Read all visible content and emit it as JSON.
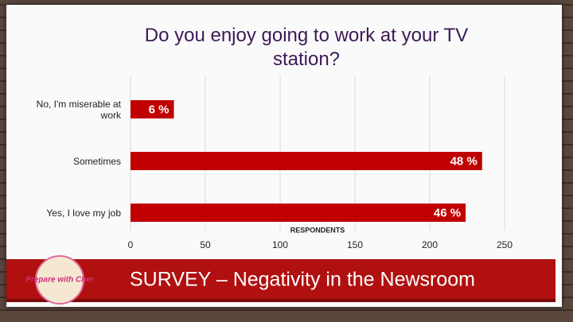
{
  "chart_data": {
    "type": "bar",
    "orientation": "horizontal",
    "title": "Do you enjoy going to work at your TV station?",
    "categories": [
      "No, I'm miserable at work",
      "Sometimes",
      "Yes, I love my job"
    ],
    "values": [
      29,
      235,
      224
    ],
    "percent_labels": [
      "6 %",
      "48 %",
      "46 %"
    ],
    "color": "#c00000",
    "xlabel": "RESPONDENTS",
    "xlim": [
      0,
      250
    ],
    "xticks": [
      0,
      50,
      100,
      150,
      200,
      250
    ],
    "grid": true
  },
  "banner": {
    "title": "SURVEY – Negativity in the Newsroom",
    "logo": "Prepare with Cher"
  }
}
